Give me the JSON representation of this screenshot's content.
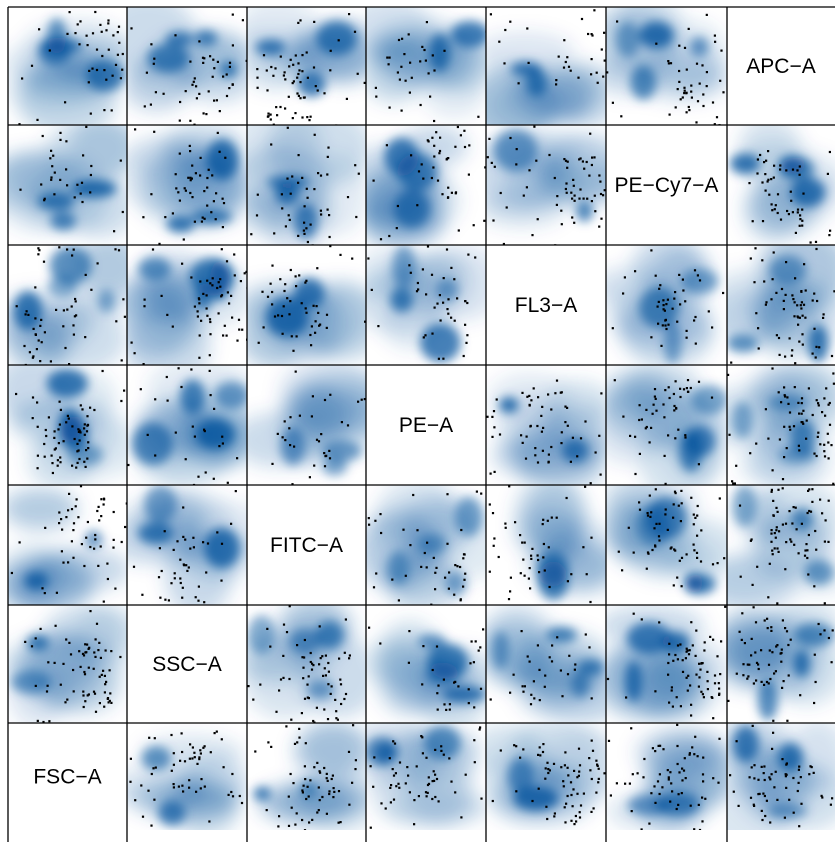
{
  "chart_data": {
    "type": "scatter",
    "subtype": "scatterplot-matrix-density",
    "variables": [
      "FSC-A",
      "SSC-A",
      "FITC-A",
      "PE-A",
      "FL3-A",
      "PE-Cy7-A",
      "APC-A"
    ],
    "diagonal_labels": [
      "FSC−A",
      "SSC−A",
      "FITC−A",
      "PE−A",
      "FL3−A",
      "PE−Cy7−A",
      "APC−A"
    ],
    "density_color": "#08519c",
    "outlier_color": "#000000",
    "grid": false,
    "axis_ticks": false
  }
}
